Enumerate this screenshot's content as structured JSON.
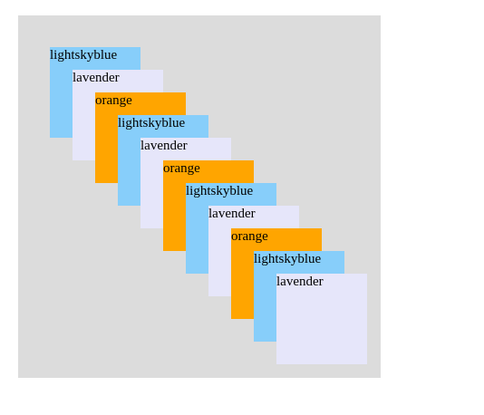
{
  "boxes": [
    {
      "label": "lightskyblue",
      "color": "#87cefa"
    },
    {
      "label": "lavender",
      "color": "#e6e6fa"
    },
    {
      "label": "orange",
      "color": "#ffa500"
    },
    {
      "label": "lightskyblue",
      "color": "#87cefa"
    },
    {
      "label": "lavender",
      "color": "#e6e6fa"
    },
    {
      "label": "orange",
      "color": "#ffa500"
    },
    {
      "label": "lightskyblue",
      "color": "#87cefa"
    },
    {
      "label": "lavender",
      "color": "#e6e6fa"
    },
    {
      "label": "orange",
      "color": "#ffa500"
    },
    {
      "label": "lightskyblue",
      "color": "#87cefa"
    },
    {
      "label": "lavender",
      "color": "#e6e6fa"
    }
  ],
  "stage_color": "#dcdcdc"
}
